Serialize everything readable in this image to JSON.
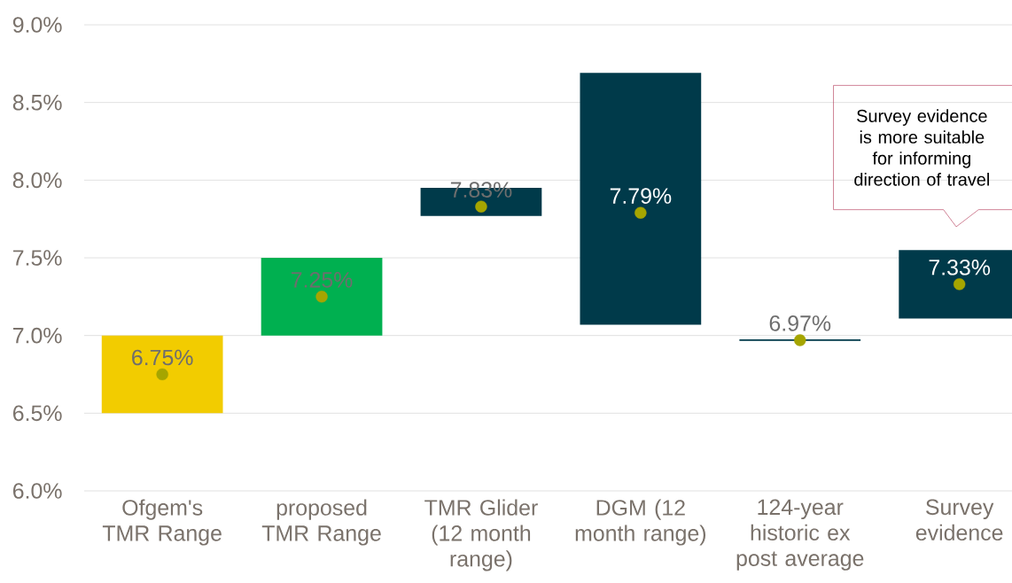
{
  "chart_data": {
    "type": "bar",
    "categories": [
      "Ofgem's TMR Range",
      "proposed TMR Range",
      "TMR Glider (12 month range)",
      "DGM (12 month range)",
      "124-year historic ex post average",
      "Survey evidence"
    ],
    "series": [
      {
        "base": [
          6.5,
          7.0,
          7.77,
          7.07,
          6.965,
          7.11
        ],
        "values": [
          0.5,
          0.5,
          0.18,
          1.62,
          0.01,
          0.44
        ],
        "colors": [
          "#f2cc00",
          "#00b050",
          "#003a4a",
          "#003a4a",
          "#003a4a",
          "#003a4a"
        ]
      },
      {
        "type": "scatter",
        "x": [
          "Ofgem's TMR Range",
          "proposed TMR Range",
          "TMR Glider (12 month range)",
          "DGM (12 month range)",
          "124-year historic ex post average",
          "Survey evidence"
        ],
        "values": [
          6.75,
          7.25,
          7.83,
          7.79,
          6.97,
          7.33
        ],
        "value_labels": [
          "6.75%",
          "7.25%",
          "7.83%",
          "7.79%",
          "6.97%",
          "7.33%"
        ],
        "color": "#a5a500"
      }
    ],
    "ylim": [
      6,
      9
    ],
    "yticks": [
      {
        "value": 6,
        "label": "6.0%"
      },
      {
        "value": 6.5,
        "label": "6.5%"
      },
      {
        "value": 7,
        "label": "7.0%"
      },
      {
        "value": 7.5,
        "label": "7.5%"
      },
      {
        "value": 8,
        "label": "8.0%"
      },
      {
        "value": 8.5,
        "label": "8.5%"
      },
      {
        "value": 9,
        "label": "9.0%"
      }
    ],
    "grid": "y",
    "marker": "circle",
    "annotations": [
      "Survey evidence is more suitable for informing direction of travel"
    ]
  }
}
